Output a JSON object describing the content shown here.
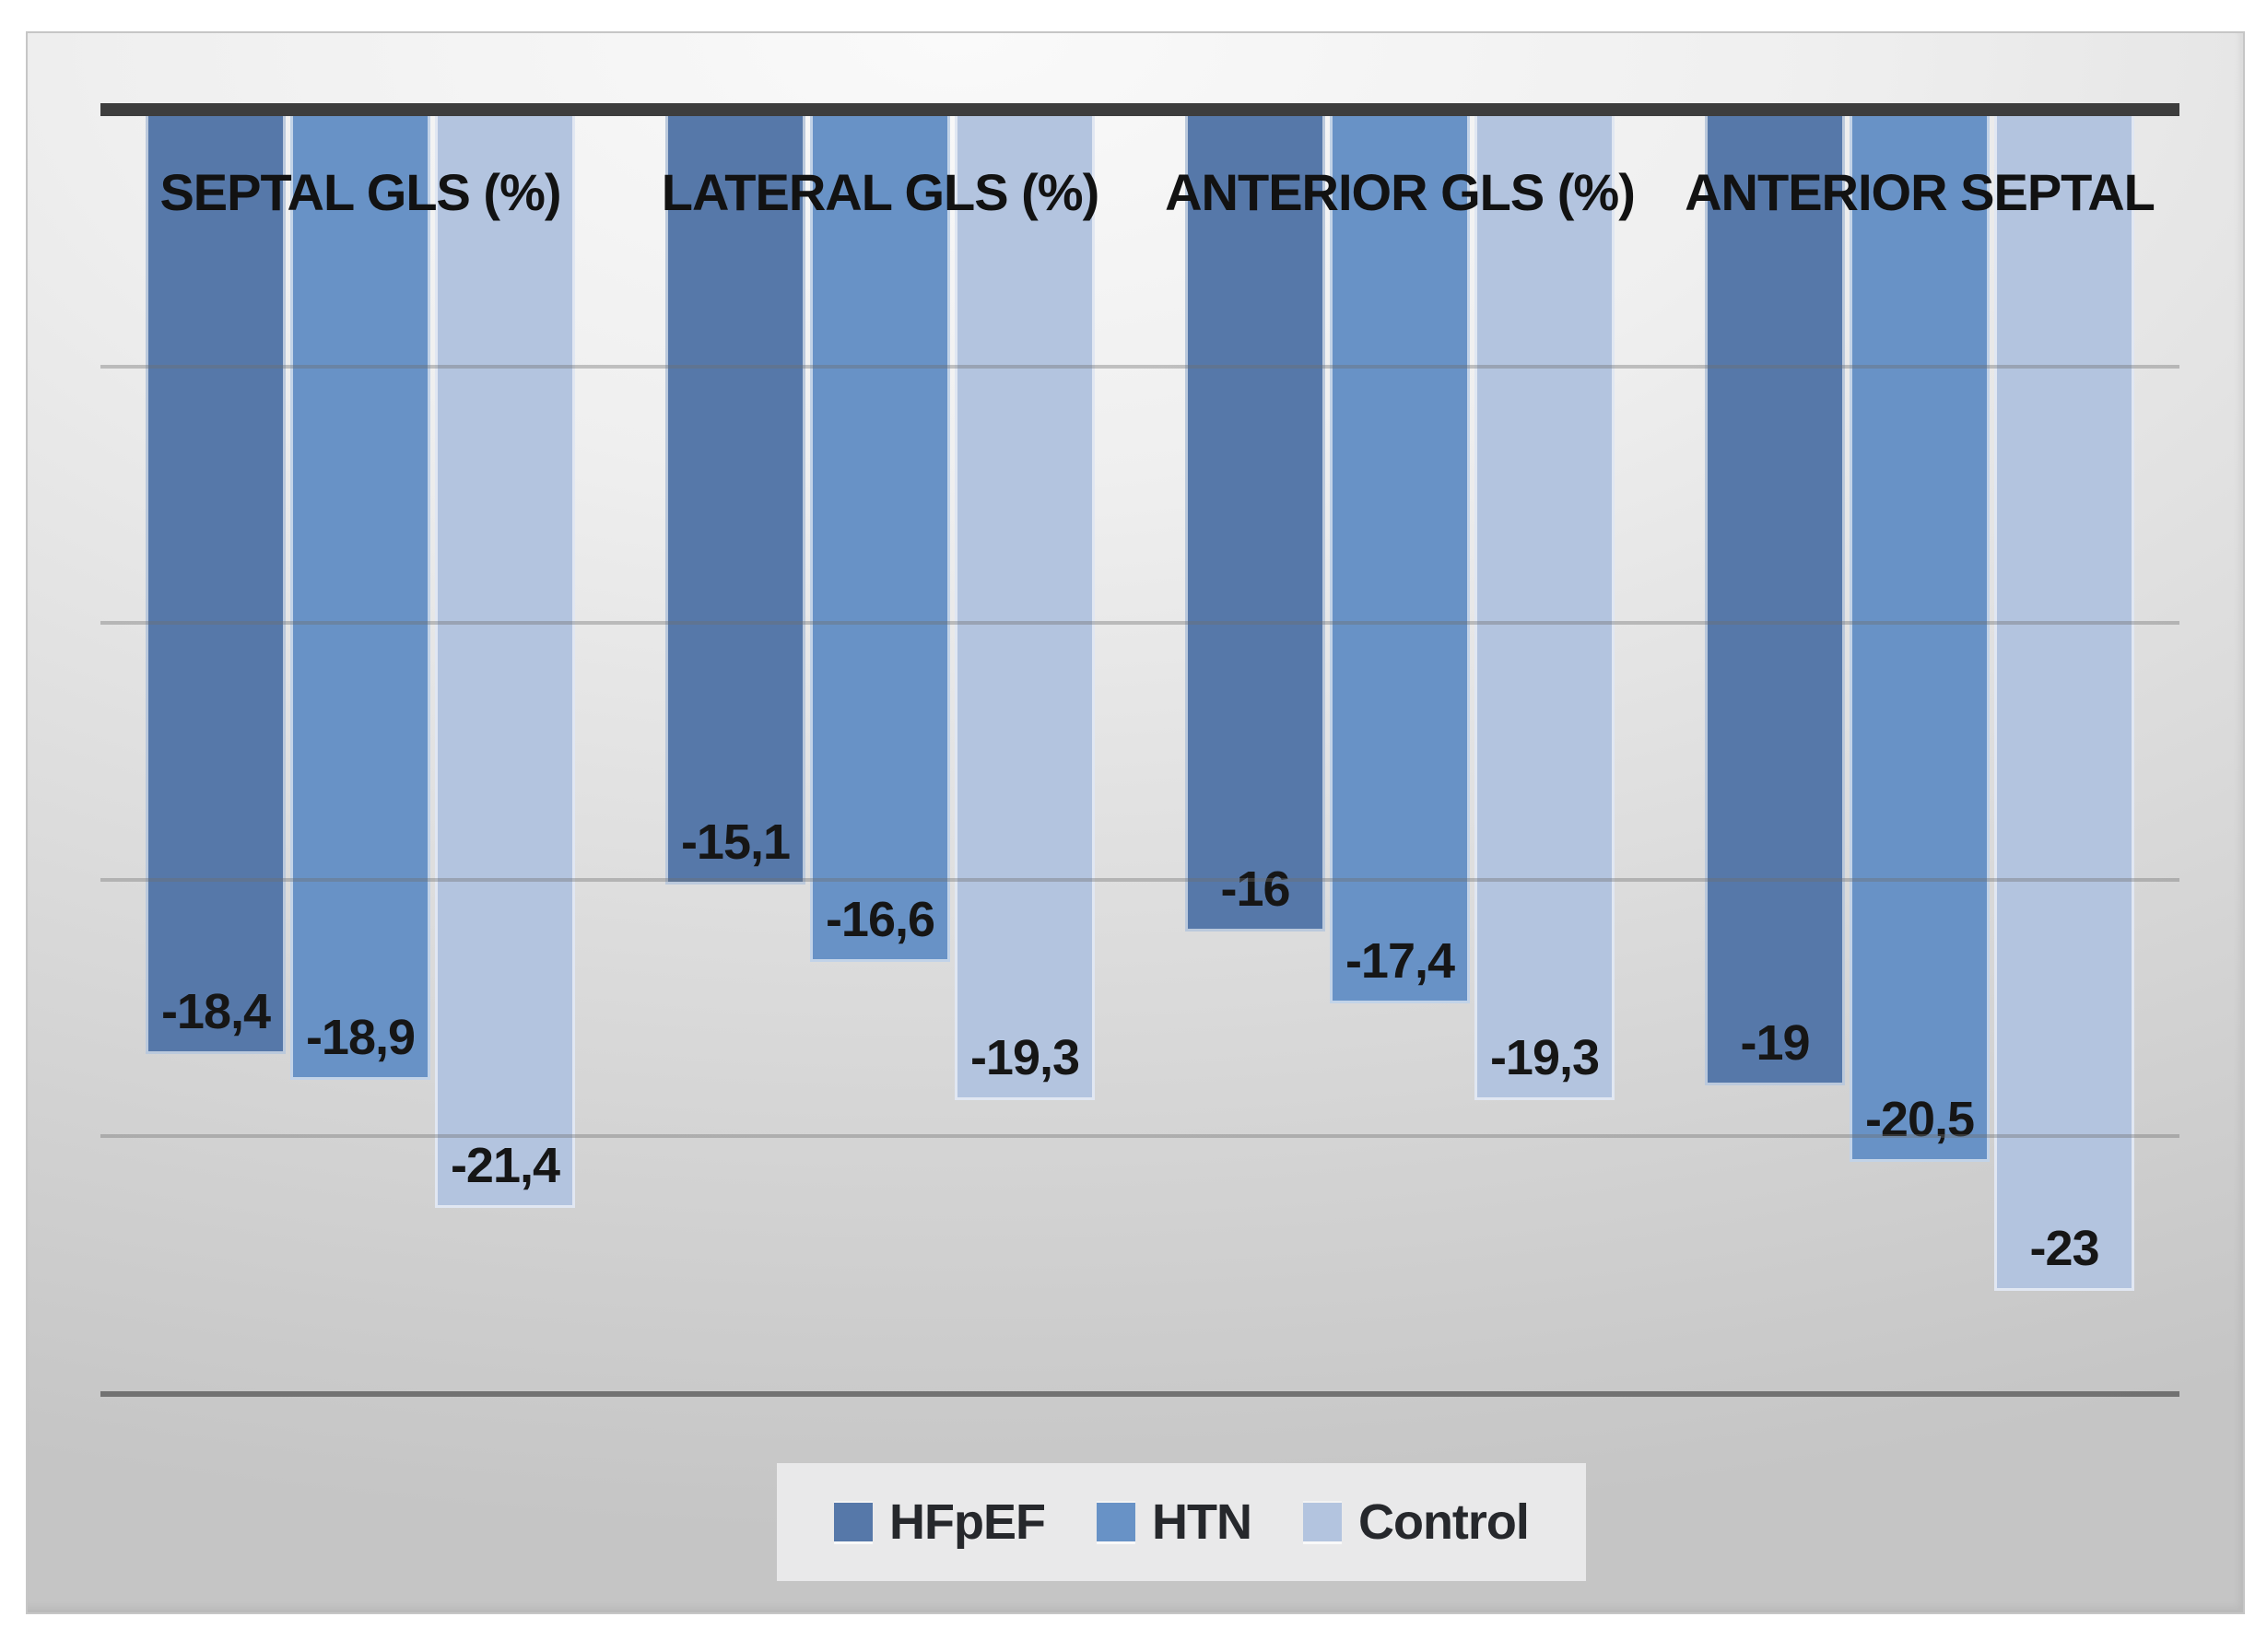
{
  "chart_data": {
    "type": "bar",
    "title": "",
    "orientation": "vertical-negative-down",
    "baseline_note": "zero axis drawn as thick dark bar at top; bars extend downward for negative GLS values",
    "categories": [
      "SEPTAL GLS (%)",
      "LATERAL GLS (%)",
      "ANTERIOR GLS (%)",
      "ANTERIOR SEPTAL"
    ],
    "series": [
      {
        "name": "HFpEF",
        "color": "#5678a9",
        "values": [
          -18.4,
          -15.1,
          -16,
          -19
        ],
        "labels": [
          "-18,4",
          "-15,1",
          "-16",
          "-19"
        ]
      },
      {
        "name": "HTN",
        "color": "#6892c6",
        "values": [
          -18.9,
          -16.6,
          -17.4,
          -20.5
        ],
        "labels": [
          "-18,9",
          "-16,6",
          "-17,4",
          "-20,5"
        ]
      },
      {
        "name": "Control",
        "color": "#b3c4df",
        "values": [
          -21.4,
          -19.3,
          -19.3,
          -23
        ],
        "labels": [
          "-21,4",
          "-19,3",
          "-19,3",
          "-23"
        ]
      }
    ],
    "ylim": [
      -25,
      0
    ],
    "gridline_interval": 5,
    "gridlines_at": [
      -5,
      -10,
      -15,
      -20,
      -25
    ],
    "grid": "horizontal gridlines, no axis tick labels, no axis numbers",
    "xlabel": "",
    "ylabel": "",
    "legend_position": "bottom-center",
    "value_format": "comma decimal separator, data labels inside end of bars"
  },
  "legend": {
    "items": [
      {
        "label": "HFpEF",
        "color": "#5678a9"
      },
      {
        "label": "HTN",
        "color": "#6892c6"
      },
      {
        "label": "Control",
        "color": "#b3c4df"
      }
    ]
  },
  "colors": {
    "zero_axis_line": "#3d3d3d",
    "gridline": "#6e6e6e",
    "panel_background_light": "#fafafa",
    "panel_background_dark": "#c5c5c5",
    "legend_background": "#e9e9ea",
    "text": "#161616"
  }
}
